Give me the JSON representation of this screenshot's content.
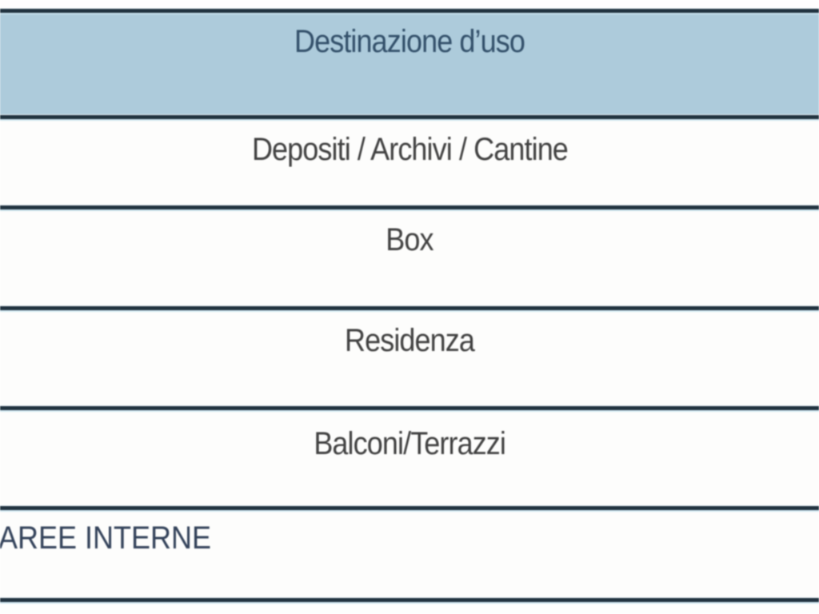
{
  "table": {
    "header": {
      "label": "Destinazione d’uso"
    },
    "rows": [
      {
        "label": "Depositi / Archivi / Cantine"
      },
      {
        "label": "Box"
      },
      {
        "label": "Residenza"
      },
      {
        "label": "Balconi/Terrazzi"
      },
      {
        "label": "AREE INTERNE"
      }
    ],
    "colors": {
      "header_bg": "#adcbdb",
      "rule": "#21323f",
      "rule_glow": "#cbe4ef",
      "header_text": "#33506a",
      "row_text": "#414141",
      "last_row_text": "#33425a",
      "page_bg": "#ffffff"
    }
  }
}
